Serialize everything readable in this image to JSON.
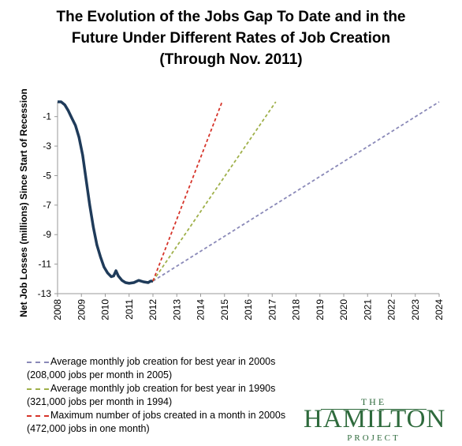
{
  "chart_data": {
    "type": "line",
    "title": [
      "The Evolution of the Jobs Gap To Date and in the",
      "Future Under Different Rates of Job Creation",
      "(Through Nov. 2011)"
    ],
    "ylabel": "Net Job Losses (millions) Since Start of Recession",
    "xlabel": "",
    "xlim": [
      2008,
      2024
    ],
    "ylim": [
      -13,
      0
    ],
    "yticks": [
      -1,
      -3,
      -5,
      -7,
      -9,
      -11,
      -13
    ],
    "xticks": [
      "2008",
      "2009",
      "2010",
      "2011",
      "2012",
      "2013",
      "2014",
      "2015",
      "2016",
      "2017",
      "2018",
      "2019",
      "2020",
      "2021",
      "2022",
      "2023",
      "2024"
    ],
    "grid": false,
    "series": [
      {
        "color": "#1f3b5a",
        "style": "solid",
        "x": [
          2008.0,
          2008.15,
          2008.3,
          2008.45,
          2008.6,
          2008.75,
          2008.9,
          2009.05,
          2009.2,
          2009.35,
          2009.5,
          2009.65,
          2009.8,
          2009.95,
          2010.1,
          2010.25,
          2010.35,
          2010.45,
          2010.55,
          2010.7,
          2010.85,
          2011.0,
          2011.2,
          2011.4,
          2011.6,
          2011.8,
          2011.9,
          2012.0
        ],
        "y": [
          0.0,
          0.0,
          -0.2,
          -0.6,
          -1.1,
          -1.6,
          -2.4,
          -3.6,
          -5.3,
          -7.0,
          -8.5,
          -9.7,
          -10.5,
          -11.2,
          -11.6,
          -11.85,
          -11.8,
          -11.45,
          -11.8,
          -12.1,
          -12.25,
          -12.3,
          -12.25,
          -12.1,
          -12.2,
          -12.25,
          -12.15,
          -12.15
        ]
      },
      {
        "name": "Average monthly job creation for best year in 2000s",
        "note": "(208,000 jobs per month in 2005)",
        "color": "#8a89b8",
        "style": "dashed",
        "x": [
          2012.0,
          2024.0
        ],
        "y": [
          -12.15,
          0.0
        ]
      },
      {
        "name": "Average monthly job creation for best year in 1990s",
        "note": "(321,000 jobs per month in 1994)",
        "color": "#9fb04a",
        "style": "dashed",
        "x": [
          2012.0,
          2017.15
        ],
        "y": [
          -12.15,
          0.0
        ]
      },
      {
        "name": "Maximum number of jobs created in a month in 2000s",
        "note": "(472,000 jobs in one month)",
        "color": "#d6342a",
        "style": "dashed",
        "x": [
          2012.0,
          2014.9
        ],
        "y": [
          -12.15,
          0.0
        ]
      }
    ]
  },
  "logo": {
    "top": "THE",
    "name": "HAMILTON",
    "bottom": "PROJECT"
  }
}
